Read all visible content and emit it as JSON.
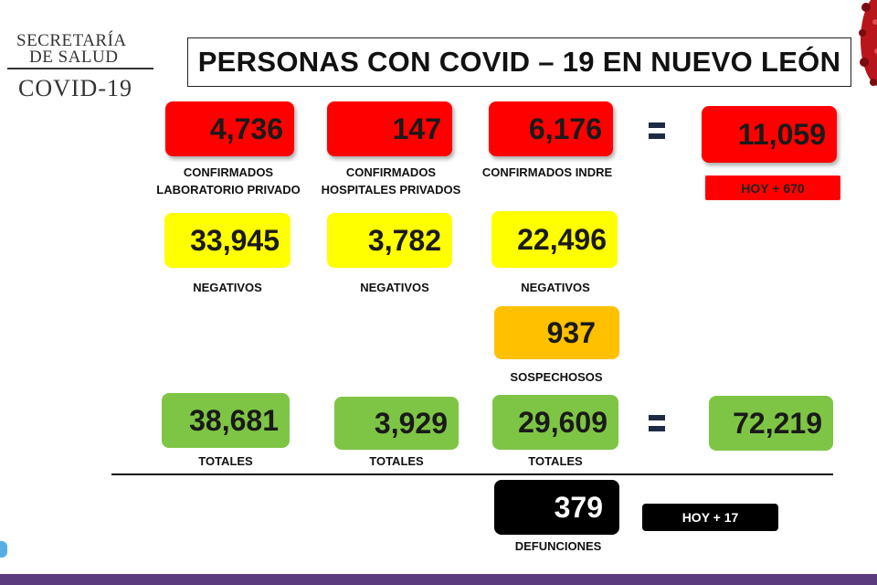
{
  "logo": {
    "line1": "SECRETARÍA",
    "line2": "DE SALUD",
    "line3": "COVID-19"
  },
  "title": "PERSONAS CON COVID – 19 EN NUEVO LEÓN",
  "confirmados": {
    "privado": {
      "value": "4,736",
      "label": "CONFIRMADOS\nLABORATORIO PRIVADO"
    },
    "hospitales": {
      "value": "147",
      "label": "CONFIRMADOS\nHOSPITALES PRIVADOS"
    },
    "indre": {
      "value": "6,176",
      "label": "CONFIRMADOS INDRE"
    },
    "total": {
      "value": "11,059",
      "hoy": "HOY + 670"
    }
  },
  "negativos": {
    "privado": {
      "value": "33,945",
      "label": "NEGATIVOS"
    },
    "hospitales": {
      "value": "3,782",
      "label": "NEGATIVOS"
    },
    "indre": {
      "value": "22,496",
      "label": "NEGATIVOS"
    }
  },
  "sospechosos": {
    "value": "937",
    "label": "SOSPECHOSOS"
  },
  "totales": {
    "privado": {
      "value": "38,681",
      "label": "TOTALES"
    },
    "hospitales": {
      "value": "3,929",
      "label": "TOTALES"
    },
    "indre": {
      "value": "29,609",
      "label": "TOTALES"
    },
    "grand": {
      "value": "72,219"
    }
  },
  "defunciones": {
    "value": "379",
    "label": "DEFUNCIONES",
    "hoy": "HOY + 17"
  },
  "colors": {
    "red": "#ff0000",
    "yellow": "#ffff00",
    "orange": "#ffc000",
    "green": "#7ec545",
    "black": "#000000"
  },
  "icons": {
    "equals": "equals-icon",
    "virus": "virus-icon"
  }
}
